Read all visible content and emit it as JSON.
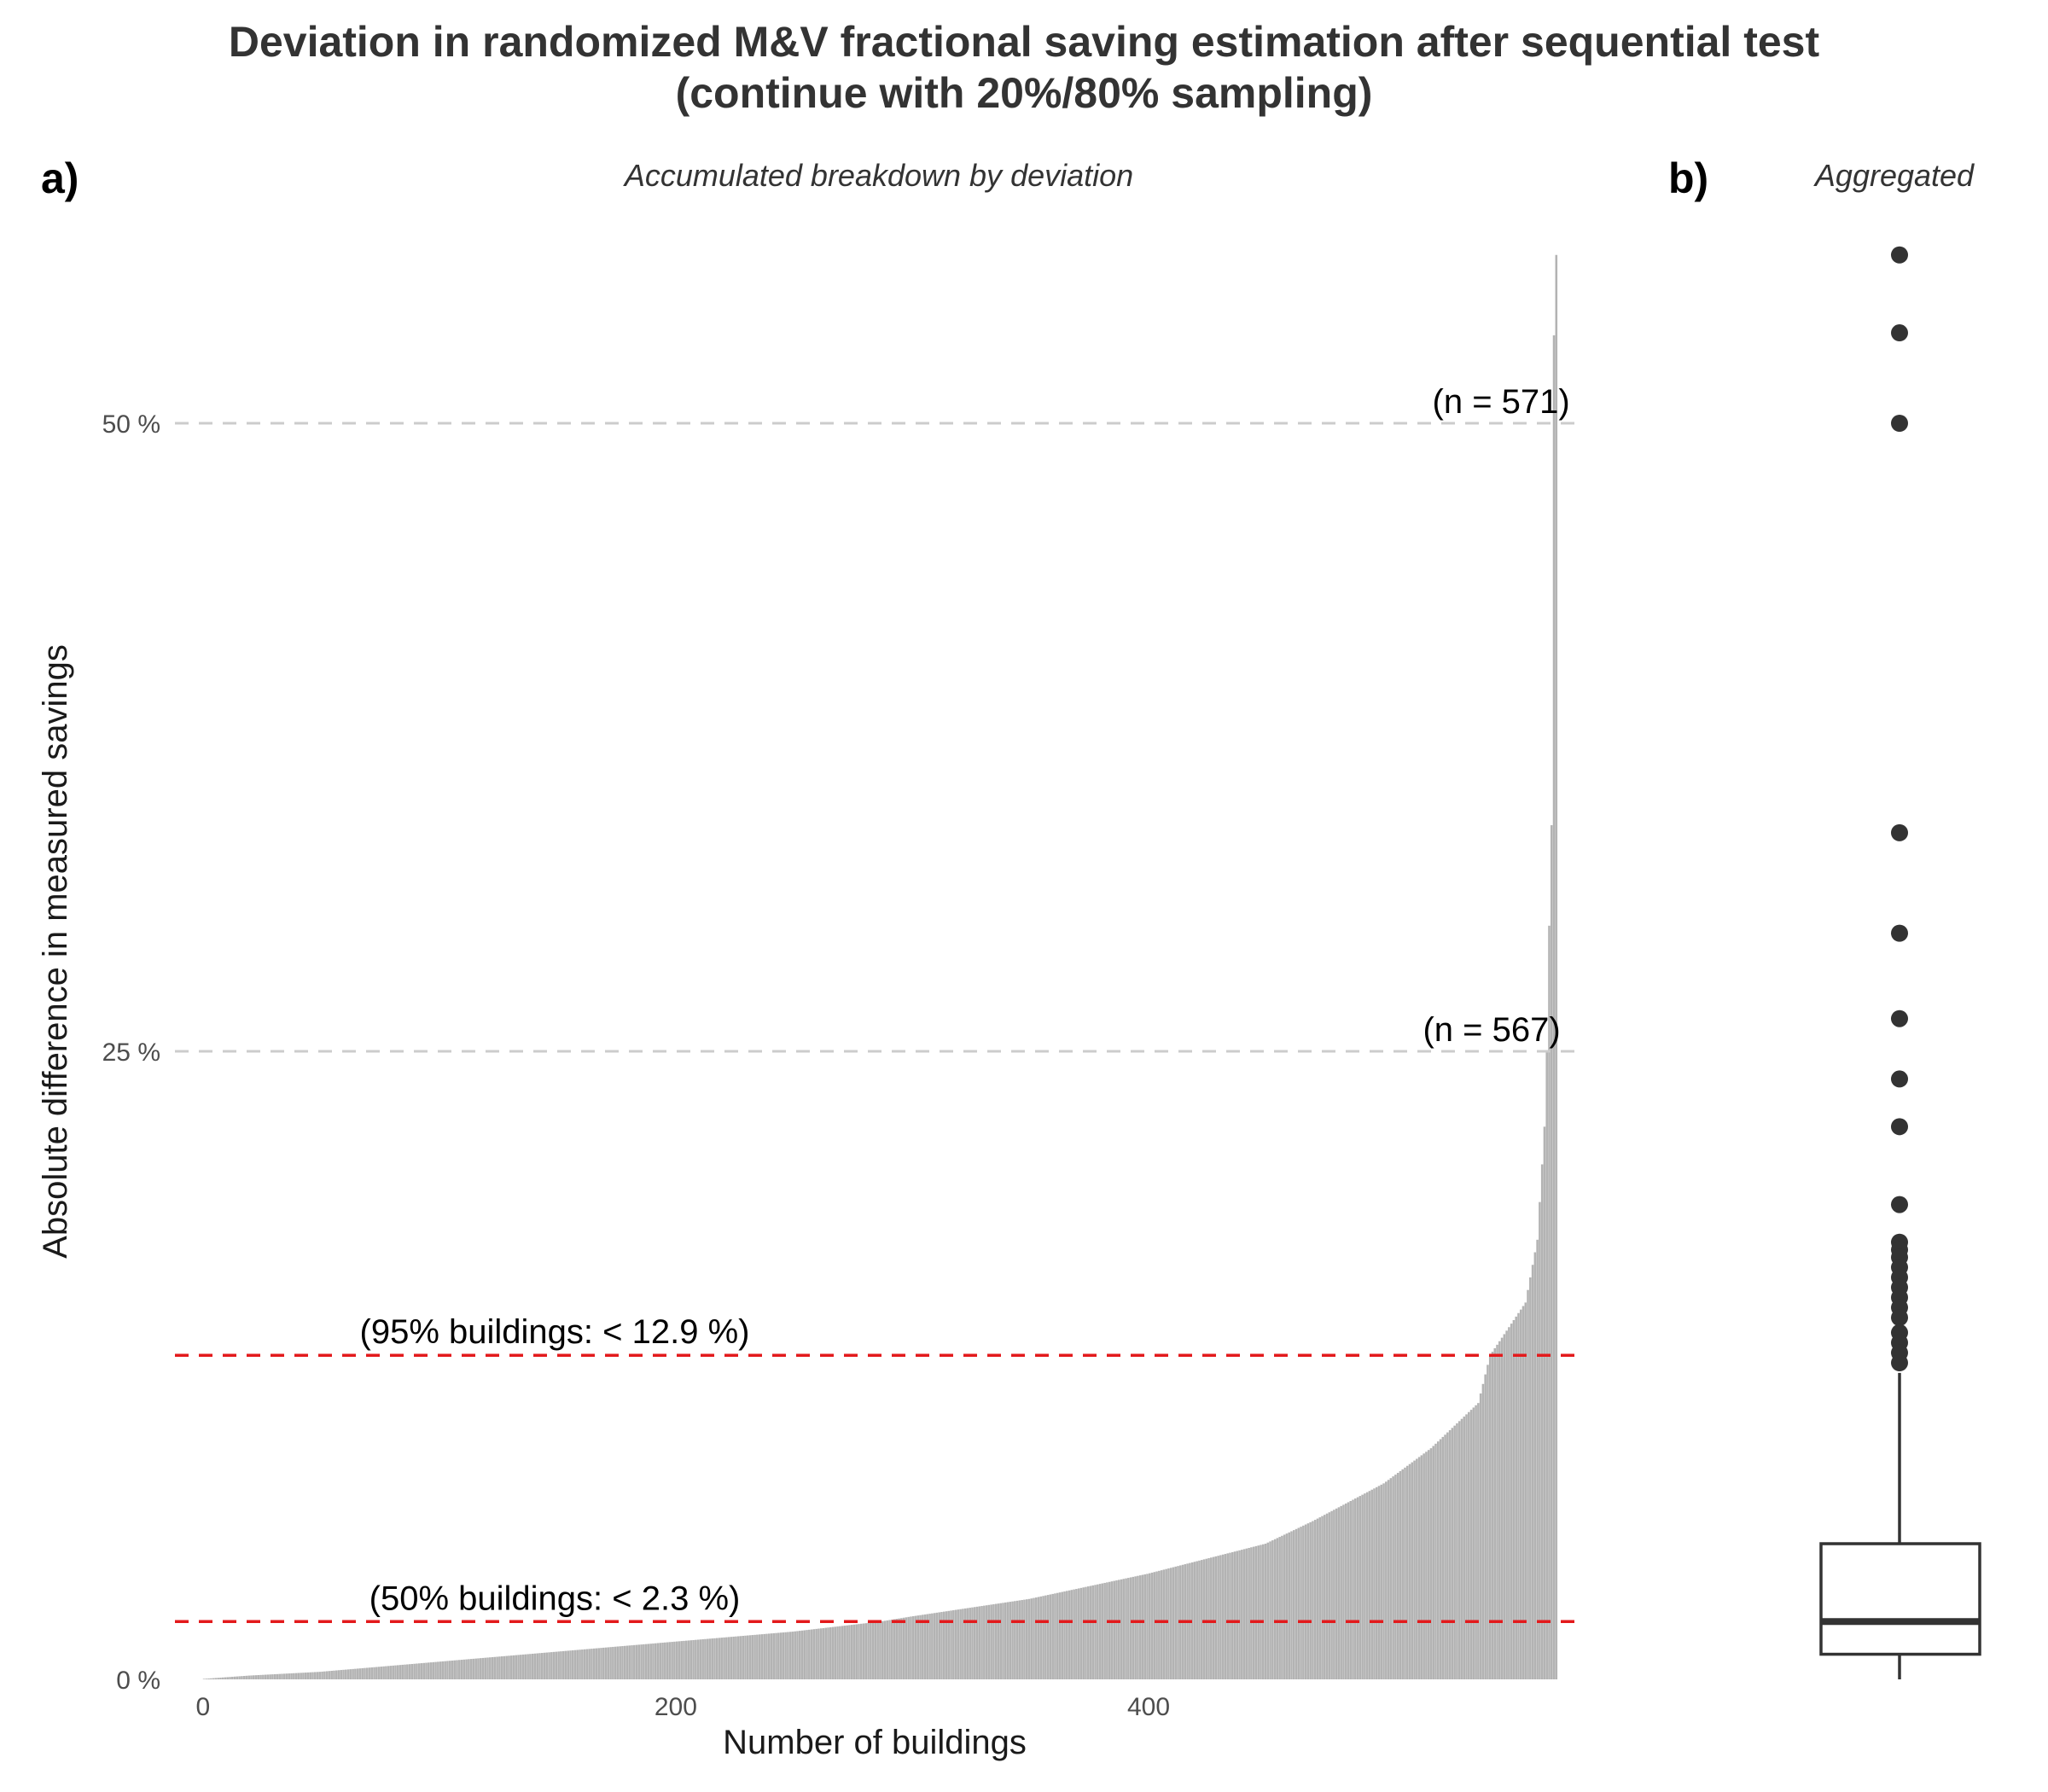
{
  "header": {
    "title_line1": "Deviation in randomized M&V fractional saving estimation after sequential test",
    "title_line2": "(continue with 20%/80% sampling)"
  },
  "panels": {
    "a": {
      "label": "a)",
      "subtitle": "Accumulated breakdown by deviation"
    },
    "b": {
      "label": "b)",
      "subtitle": "Aggregated"
    }
  },
  "colors": {
    "bars": "#b3b3b3",
    "reference_lines": "#e31a1c",
    "grid_dashes": "#cccccc",
    "box": "#333333"
  },
  "chart_data": [
    {
      "type": "bar",
      "panel": "a",
      "xlabel": "Number of buildings",
      "ylabel": "Absolute difference in measured savings",
      "xlim": [
        0,
        580
      ],
      "ylim": [
        0,
        57
      ],
      "x_ticks": [
        {
          "value": 0,
          "label": "0"
        },
        {
          "value": 200,
          "label": "200"
        },
        {
          "value": 400,
          "label": "400"
        }
      ],
      "y_ticks": [
        {
          "value": 0,
          "label": "0 %"
        },
        {
          "value": 25,
          "label": "25 %"
        },
        {
          "value": 50,
          "label": "50 %"
        }
      ],
      "n_buildings": 573,
      "sorted_deviation_keypoints": [
        [
          1,
          0.02
        ],
        [
          20,
          0.15
        ],
        [
          50,
          0.3
        ],
        [
          100,
          0.7
        ],
        [
          150,
          1.1
        ],
        [
          200,
          1.5
        ],
        [
          250,
          1.9
        ],
        [
          287,
          2.3
        ],
        [
          300,
          2.5
        ],
        [
          350,
          3.2
        ],
        [
          400,
          4.2
        ],
        [
          450,
          5.4
        ],
        [
          470,
          6.3
        ],
        [
          500,
          7.8
        ],
        [
          520,
          9.2
        ],
        [
          540,
          11.0
        ],
        [
          545,
          12.9
        ],
        [
          560,
          15.0
        ],
        [
          565,
          17.5
        ],
        [
          568,
          22.0
        ],
        [
          569,
          25.0
        ],
        [
          570,
          30.0
        ],
        [
          571,
          34.0
        ],
        [
          572,
          53.5
        ],
        [
          573,
          56.7
        ]
      ],
      "reference_lines": [
        {
          "y": 12.9,
          "label": "(95% buildings: < 12.9 %)"
        },
        {
          "y": 2.3,
          "label": "(50% buildings: < 2.3 %)"
        }
      ],
      "annotations": [
        {
          "x": 571,
          "y": 50,
          "label": "(n = 571)"
        },
        {
          "x": 567,
          "y": 25,
          "label": "(n = 567)"
        }
      ]
    },
    {
      "type": "box",
      "panel": "b",
      "ylim": [
        0,
        57
      ],
      "min": 0.0,
      "q1": 1.0,
      "median": 2.3,
      "q3": 5.4,
      "whisker_high": 12.2,
      "outliers": [
        56.7,
        53.6,
        50.0,
        33.7,
        29.7,
        26.3,
        23.9,
        22.0,
        18.9,
        17.4,
        17.1,
        16.8,
        16.4,
        16.0,
        15.6,
        15.2,
        14.8,
        14.4,
        13.8,
        13.4,
        13.0,
        12.6
      ]
    }
  ]
}
